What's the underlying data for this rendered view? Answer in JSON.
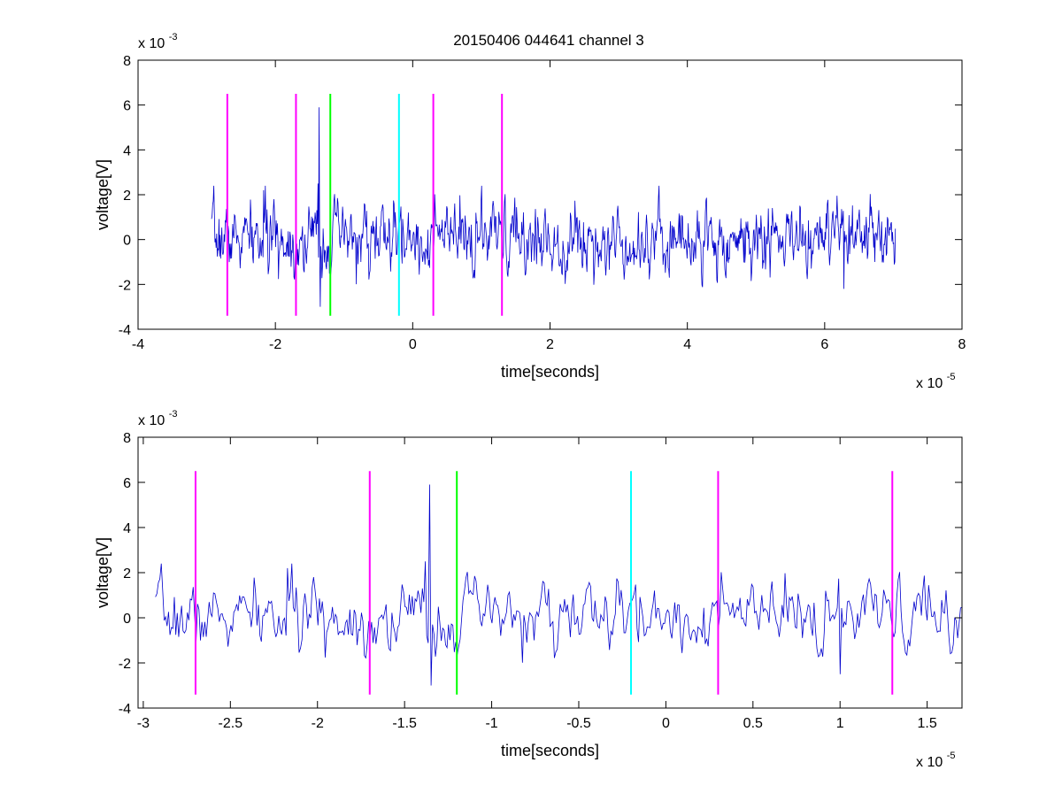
{
  "figure_title": "20150406 044641 channel 3",
  "chart_data": [
    {
      "type": "line",
      "title": "20150406 044641 channel 3",
      "xlabel": "time[seconds]",
      "ylabel": "voltage[V]",
      "x_multiplier_label": "x 10",
      "x_multiplier_exp": "-5",
      "y_multiplier_label": "x 10",
      "y_multiplier_exp": "-3",
      "xlim": [
        -4,
        8
      ],
      "ylim": [
        -4,
        8
      ],
      "x_ticks": [
        "-4",
        "-2",
        "0",
        "2",
        "4",
        "6",
        "8"
      ],
      "x_tick_values": [
        -4,
        -2,
        0,
        2,
        4,
        6,
        8
      ],
      "y_ticks": [
        "-4",
        "-2",
        "0",
        "2",
        "4",
        "6",
        "8"
      ],
      "y_tick_values": [
        -4,
        -2,
        0,
        2,
        4,
        6,
        8
      ],
      "grid": false,
      "signal": {
        "color": "#0000cc",
        "x_start": -2.93,
        "x_end": 7.03,
        "noise_std": 0.75,
        "seed": 7,
        "spikes": [
          {
            "x": -1.36,
            "y": 5.9
          },
          {
            "x": -1.38,
            "y": 2.5
          },
          {
            "x": -1.35,
            "y": -3.0
          },
          {
            "x": -2.17,
            "y": 2.2
          },
          {
            "x": 6.28,
            "y": -2.2
          }
        ]
      },
      "markers": [
        {
          "x": -2.7,
          "color": "#ff00ff",
          "y_top": 6.5,
          "y_bottom": -3.4
        },
        {
          "x": -1.7,
          "color": "#ff00ff",
          "y_top": 6.5,
          "y_bottom": -3.4
        },
        {
          "x": -1.2,
          "color": "#00ff00",
          "y_top": 6.5,
          "y_bottom": -3.4
        },
        {
          "x": -0.2,
          "color": "#00ffff",
          "y_top": 6.5,
          "y_bottom": -3.4
        },
        {
          "x": 0.3,
          "color": "#ff00ff",
          "y_top": 6.5,
          "y_bottom": -3.4
        },
        {
          "x": 1.3,
          "color": "#ff00ff",
          "y_top": 6.5,
          "y_bottom": -3.4
        }
      ]
    },
    {
      "type": "line",
      "title": "",
      "xlabel": "time[seconds]",
      "ylabel": "voltage[V]",
      "x_multiplier_label": "x 10",
      "x_multiplier_exp": "-5",
      "y_multiplier_label": "x 10",
      "y_multiplier_exp": "-3",
      "xlim": [
        -3.03,
        1.7
      ],
      "ylim": [
        -4,
        8
      ],
      "x_ticks": [
        "-3",
        "-2.5",
        "-2",
        "-1.5",
        "-1",
        "-0.5",
        "0",
        "0.5",
        "1",
        "1.5"
      ],
      "x_tick_values": [
        -3,
        -2.5,
        -2,
        -1.5,
        -1,
        -0.5,
        0,
        0.5,
        1,
        1.5
      ],
      "y_ticks": [
        "-4",
        "-2",
        "0",
        "2",
        "4",
        "6",
        "8"
      ],
      "y_tick_values": [
        -4,
        -2,
        0,
        2,
        4,
        6,
        8
      ],
      "grid": false,
      "signal": {
        "color": "#0000cc",
        "x_start": -2.93,
        "x_end": 1.7,
        "noise_std": 0.75,
        "seed": 7,
        "spikes": [
          {
            "x": -1.36,
            "y": 5.9
          },
          {
            "x": -1.38,
            "y": 2.5
          },
          {
            "x": -1.35,
            "y": -3.0
          },
          {
            "x": -2.17,
            "y": 2.2
          },
          {
            "x": 1.0,
            "y": -2.5
          }
        ]
      },
      "markers": [
        {
          "x": -2.7,
          "color": "#ff00ff",
          "y_top": 6.5,
          "y_bottom": -3.4
        },
        {
          "x": -1.7,
          "color": "#ff00ff",
          "y_top": 6.5,
          "y_bottom": -3.4
        },
        {
          "x": -1.2,
          "color": "#00ff00",
          "y_top": 6.5,
          "y_bottom": -3.4
        },
        {
          "x": -0.2,
          "color": "#00ffff",
          "y_top": 6.5,
          "y_bottom": -3.4
        },
        {
          "x": 0.3,
          "color": "#ff00ff",
          "y_top": 6.5,
          "y_bottom": -3.4
        },
        {
          "x": 1.3,
          "color": "#ff00ff",
          "y_top": 6.5,
          "y_bottom": -3.4
        }
      ]
    }
  ]
}
